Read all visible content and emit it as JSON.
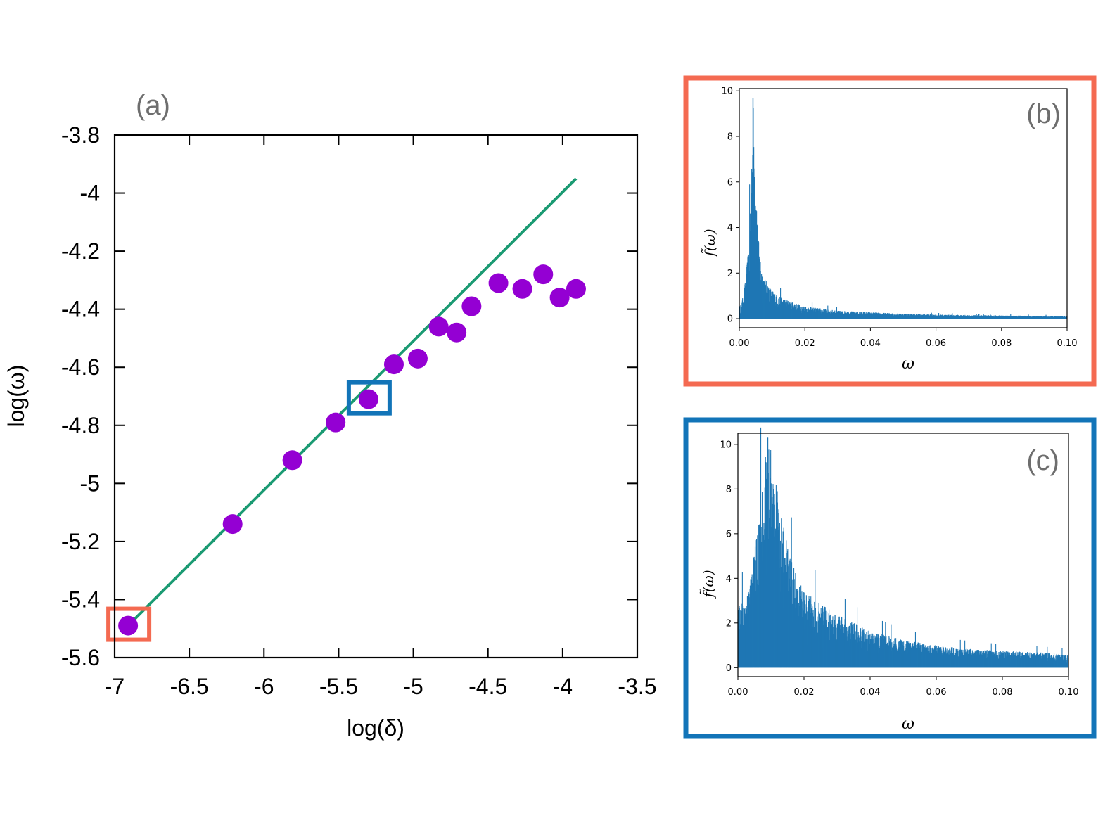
{
  "colors": {
    "fit_line": "#1a9a72",
    "points": "#9400d3",
    "highlight_b": "#f46a51",
    "highlight_c": "#1274b8",
    "spectrum": "#1f77b4",
    "panel_tag": "#6e6e6e"
  },
  "chart_data": [
    {
      "id": "a",
      "type": "scatter",
      "panel_label": "(a)",
      "xlabel": "log(δ)",
      "ylabel": "log(ω)",
      "xlim": [
        -7,
        -3.5
      ],
      "ylim": [
        -5.6,
        -3.8
      ],
      "x_ticks": [
        -7,
        -6.5,
        -6,
        -5.5,
        -5,
        -4.5,
        -4,
        -3.5
      ],
      "x_tick_labels": [
        "-7",
        "-6.5",
        "-6",
        "-5.5",
        "-5",
        "-4.5",
        "-4",
        "-3.5"
      ],
      "y_ticks": [
        -3.8,
        -4,
        -4.2,
        -4.4,
        -4.6,
        -4.8,
        -5,
        -5.2,
        -5.4,
        -5.6
      ],
      "y_tick_labels": [
        "-3.8",
        "-4",
        "-4.2",
        "-4.4",
        "-4.6",
        "-4.8",
        "-5",
        "-5.2",
        "-5.4",
        "-5.6"
      ],
      "grid": false,
      "series": [
        {
          "name": "data",
          "kind": "points",
          "x": [
            -6.91,
            -6.21,
            -5.81,
            -5.52,
            -5.3,
            -5.13,
            -4.97,
            -4.83,
            -4.71,
            -4.61,
            -4.43,
            -4.27,
            -4.13,
            -4.02,
            -3.91
          ],
          "y": [
            -5.49,
            -5.14,
            -4.92,
            -4.79,
            -4.71,
            -4.59,
            -4.57,
            -4.46,
            -4.48,
            -4.39,
            -4.31,
            -4.33,
            -4.28,
            -4.36,
            -4.33
          ]
        },
        {
          "name": "fit",
          "kind": "line",
          "x": [
            -6.91,
            -3.91
          ],
          "y": [
            -5.49,
            -3.95
          ]
        }
      ],
      "highlights": [
        {
          "label": "(b)",
          "x": -6.91,
          "y": -5.49
        },
        {
          "label": "(c)",
          "x": -5.3,
          "y": -4.71
        }
      ]
    },
    {
      "id": "b",
      "type": "bar",
      "panel_label": "(b)",
      "xlabel": "ω",
      "ylabel": "f̃(ω)",
      "xlim": [
        0,
        0.1
      ],
      "ylim": [
        -0.4,
        10.1
      ],
      "x_ticks": [
        0,
        0.02,
        0.04,
        0.06,
        0.08,
        0.1
      ],
      "x_tick_labels": [
        "0.00",
        "0.02",
        "0.04",
        "0.06",
        "0.08",
        "0.10"
      ],
      "y_ticks": [
        0,
        2,
        4,
        6,
        8,
        10
      ],
      "y_tick_labels": [
        "0",
        "2",
        "4",
        "6",
        "8",
        "10"
      ],
      "grid": false,
      "peak": {
        "x": 0.0042,
        "y": 9.7
      },
      "envelope": {
        "x": [
          0,
          0.001,
          0.002,
          0.003,
          0.0035,
          0.004,
          0.0042,
          0.0045,
          0.005,
          0.0055,
          0.006,
          0.007,
          0.008,
          0.01,
          0.012,
          0.015,
          0.02,
          0.03,
          0.04,
          0.05,
          0.06,
          0.08,
          0.1
        ],
        "y": [
          0.5,
          0.9,
          1.8,
          3.5,
          6.0,
          8.6,
          9.7,
          8.9,
          6.5,
          4.5,
          3.2,
          2.1,
          1.7,
          1.25,
          1.0,
          0.8,
          0.55,
          0.35,
          0.28,
          0.22,
          0.18,
          0.14,
          0.11
        ]
      }
    },
    {
      "id": "c",
      "type": "bar",
      "panel_label": "(c)",
      "xlabel": "ω",
      "ylabel": "f̃(ω)",
      "xlim": [
        0,
        0.1
      ],
      "ylim": [
        -0.4,
        10.5
      ],
      "x_ticks": [
        0,
        0.02,
        0.04,
        0.06,
        0.08,
        0.1
      ],
      "x_tick_labels": [
        "0.00",
        "0.02",
        "0.04",
        "0.06",
        "0.08",
        "0.10"
      ],
      "y_ticks": [
        0,
        2,
        4,
        6,
        8,
        10
      ],
      "y_tick_labels": [
        "0",
        "2",
        "4",
        "6",
        "8",
        "10"
      ],
      "grid": false,
      "peak": {
        "x": 0.009,
        "y": 10.3
      },
      "envelope": {
        "x": [
          0,
          0.002,
          0.004,
          0.006,
          0.007,
          0.008,
          0.009,
          0.01,
          0.011,
          0.012,
          0.014,
          0.016,
          0.018,
          0.02,
          0.025,
          0.03,
          0.04,
          0.05,
          0.06,
          0.07,
          0.08,
          0.09,
          0.1
        ],
        "y": [
          2.8,
          3.2,
          4.3,
          6.2,
          7.8,
          9.5,
          10.3,
          9.8,
          9.0,
          8.0,
          6.2,
          4.9,
          4.1,
          3.6,
          2.9,
          2.4,
          1.65,
          1.25,
          1.0,
          0.85,
          0.75,
          0.7,
          0.6
        ]
      }
    }
  ]
}
